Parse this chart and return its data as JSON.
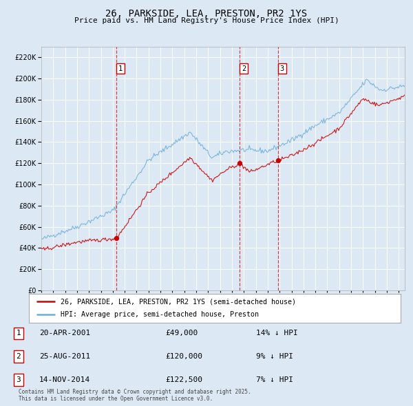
{
  "title": "26, PARKSIDE, LEA, PRESTON, PR2 1YS",
  "subtitle": "Price paid vs. HM Land Registry's House Price Index (HPI)",
  "background_color": "#dce9f5",
  "plot_bg_color": "#dce9f5",
  "legend_label_red": "26, PARKSIDE, LEA, PRESTON, PR2 1YS (semi-detached house)",
  "legend_label_blue": "HPI: Average price, semi-detached house, Preston",
  "footnote": "Contains HM Land Registry data © Crown copyright and database right 2025.\nThis data is licensed under the Open Government Licence v3.0.",
  "sale_prices": [
    49000,
    120000,
    122500
  ],
  "sale_labels": [
    "1",
    "2",
    "3"
  ],
  "sale_info": [
    "20-APR-2001",
    "25-AUG-2011",
    "14-NOV-2014"
  ],
  "sale_amounts": [
    "£49,000",
    "£120,000",
    "£122,500"
  ],
  "sale_hpi": [
    "14% ↓ HPI",
    "9% ↓ HPI",
    "7% ↓ HPI"
  ],
  "ylim": [
    0,
    230000
  ],
  "ytick_step": 20000,
  "hpi_color": "#6baed6",
  "sale_color": "#cc0000",
  "dashed_color": "#cc0000",
  "table_border_color": "#cc0000",
  "sale_date_nums": [
    2001.3,
    2011.65,
    2014.88
  ]
}
